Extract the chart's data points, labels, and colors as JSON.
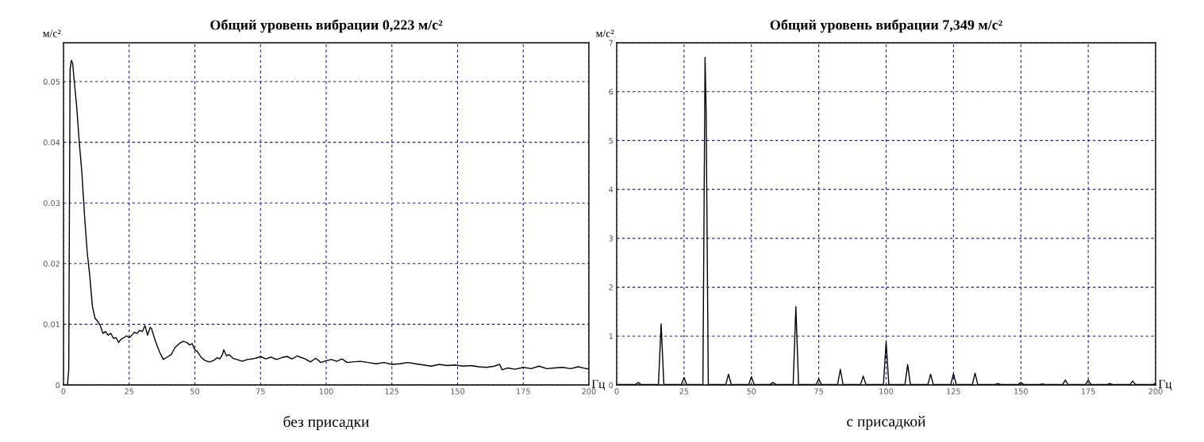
{
  "chart_data": [
    {
      "type": "line",
      "title": "Общий уровень вибрации 0,223 м/с²",
      "ylabel": "м/с²",
      "xlabel": "Гц",
      "annotations": [
        "без присадки"
      ],
      "grid": true,
      "marker": "none",
      "line_style": "solid",
      "xlim": [
        0,
        200
      ],
      "xticks": [
        0,
        25,
        50,
        75,
        100,
        125,
        150,
        175,
        200
      ],
      "ylim": [
        0,
        0.0564
      ],
      "yticks": [
        0,
        0.01,
        0.02,
        0.03,
        0.04,
        0.05
      ],
      "series": [
        {
          "color": "#000000",
          "x": [
            1.5,
            2.0,
            2.5,
            3.0,
            3.5,
            4.0,
            5.0,
            6.0,
            7.0,
            8.0,
            8.5,
            9.0,
            10.0,
            11.0,
            12.0,
            13.0,
            14.0,
            15.0,
            16.0,
            17.0,
            18.0,
            19.0,
            20.0,
            21.0,
            22.0,
            23.0,
            24.0,
            25.0,
            26.0,
            27.0,
            28.0,
            29.0,
            30.0,
            31.0,
            32.0,
            33.0,
            33.5,
            35.0,
            36.5,
            38.0,
            39.5,
            41.0,
            42.5,
            44.0,
            45.5,
            47.0,
            48.0,
            49.0,
            50.0,
            51.0,
            52.5,
            54.0,
            55.5,
            57.0,
            58.5,
            59.5,
            60.5,
            61.0,
            62.0,
            63.0,
            64.5,
            66.0,
            68.0,
            70.0,
            72.0,
            74.0,
            75.0,
            77.0,
            79.0,
            81.0,
            83.0,
            85.0,
            87.0,
            89.0,
            90.0,
            92.0,
            94.0,
            96.0,
            98.0,
            100.0,
            102.0,
            104.0,
            106.0,
            108.0,
            110.0,
            113.0,
            116.0,
            119.0,
            122.0,
            125.0,
            128.0,
            131.0,
            134.0,
            137.0,
            140.0,
            143.0,
            146.0,
            149.0,
            152.0,
            155.0,
            158.0,
            161.0,
            164.0,
            166.0,
            167.0,
            169.0,
            172.0,
            175.0,
            178.0,
            181.0,
            184.0,
            187.0,
            190.0,
            193.0,
            196.0,
            198.0,
            200.0
          ],
          "values": [
            0.0,
            0.0025,
            0.052,
            0.0535,
            0.053,
            0.0505,
            0.046,
            0.04,
            0.035,
            0.028,
            0.025,
            0.022,
            0.018,
            0.013,
            0.011,
            0.0105,
            0.0098,
            0.0085,
            0.0088,
            0.0082,
            0.0085,
            0.0077,
            0.0078,
            0.007,
            0.0076,
            0.0078,
            0.0081,
            0.0078,
            0.0082,
            0.0087,
            0.0085,
            0.009,
            0.0088,
            0.0098,
            0.0082,
            0.0095,
            0.0093,
            0.0072,
            0.0055,
            0.0042,
            0.0046,
            0.005,
            0.0062,
            0.0068,
            0.0072,
            0.007,
            0.0066,
            0.0068,
            0.0058,
            0.0055,
            0.0045,
            0.004,
            0.0038,
            0.004,
            0.0045,
            0.0043,
            0.005,
            0.0058,
            0.0048,
            0.005,
            0.0044,
            0.0042,
            0.0039,
            0.0042,
            0.0043,
            0.0045,
            0.0047,
            0.0043,
            0.0046,
            0.0042,
            0.0045,
            0.0047,
            0.0043,
            0.0048,
            0.0046,
            0.0043,
            0.0038,
            0.0044,
            0.0037,
            0.004,
            0.0042,
            0.0039,
            0.0043,
            0.0037,
            0.0038,
            0.0039,
            0.0037,
            0.0035,
            0.0037,
            0.0034,
            0.0035,
            0.0037,
            0.0035,
            0.0033,
            0.0031,
            0.0034,
            0.0032,
            0.0033,
            0.0031,
            0.0032,
            0.003,
            0.0029,
            0.0031,
            0.0034,
            0.0025,
            0.0028,
            0.0026,
            0.0029,
            0.0027,
            0.0031,
            0.0027,
            0.0028,
            0.0029,
            0.0027,
            0.003,
            0.0028,
            0.0026
          ]
        }
      ]
    },
    {
      "type": "line",
      "title": "Общий уровень вибрации 7,349 м/с²",
      "ylabel": "м/с²",
      "xlabel": "Гц",
      "annotations": [
        "с присадкой"
      ],
      "grid": true,
      "marker": "none",
      "line_style": "solid",
      "xlim": [
        0,
        200
      ],
      "xticks": [
        0,
        25,
        50,
        75,
        100,
        125,
        150,
        175,
        200
      ],
      "ylim": [
        0,
        7
      ],
      "yticks": [
        0,
        1,
        2,
        3,
        4,
        5,
        6,
        7
      ],
      "series": [
        {
          "color": "#000000",
          "x": [
            0.0,
            7.0,
            8.0,
            9.0,
            15.5,
            16.5,
            17.5,
            24.0,
            25.0,
            26.0,
            32.0,
            32.8,
            33.2,
            34.0,
            40.5,
            41.5,
            42.5,
            49.0,
            50.0,
            51.0,
            57.0,
            58.0,
            59.0,
            65.5,
            66.5,
            67.5,
            74.0,
            75.0,
            76.0,
            82.0,
            83.0,
            84.0,
            90.5,
            91.5,
            92.5,
            99.0,
            100.0,
            101.0,
            107.0,
            108.0,
            109.0,
            115.5,
            116.5,
            117.5,
            124.0,
            125.0,
            126.0,
            132.0,
            133.0,
            134.0,
            140.5,
            141.5,
            142.5,
            149.0,
            150.0,
            151.0,
            157.0,
            158.0,
            159.0,
            165.5,
            166.5,
            167.5,
            174.0,
            175.0,
            176.0,
            182.0,
            183.0,
            184.0,
            190.5,
            191.5,
            192.5,
            199.0,
            200.0
          ],
          "values": [
            0.01,
            0.01,
            0.05,
            0.01,
            0.01,
            1.25,
            0.01,
            0.01,
            0.15,
            0.01,
            0.01,
            6.7,
            5.6,
            0.01,
            0.01,
            0.22,
            0.01,
            0.01,
            0.17,
            0.01,
            0.01,
            0.05,
            0.01,
            0.01,
            1.6,
            0.01,
            0.01,
            0.12,
            0.01,
            0.01,
            0.32,
            0.01,
            0.01,
            0.18,
            0.01,
            0.01,
            0.88,
            0.01,
            0.01,
            0.42,
            0.01,
            0.01,
            0.22,
            0.01,
            0.01,
            0.23,
            0.01,
            0.01,
            0.24,
            0.01,
            0.01,
            0.03,
            0.01,
            0.01,
            0.05,
            0.01,
            0.01,
            0.02,
            0.01,
            0.01,
            0.1,
            0.01,
            0.01,
            0.1,
            0.01,
            0.01,
            0.03,
            0.01,
            0.01,
            0.08,
            0.01,
            0.01,
            0.03
          ]
        }
      ]
    }
  ]
}
